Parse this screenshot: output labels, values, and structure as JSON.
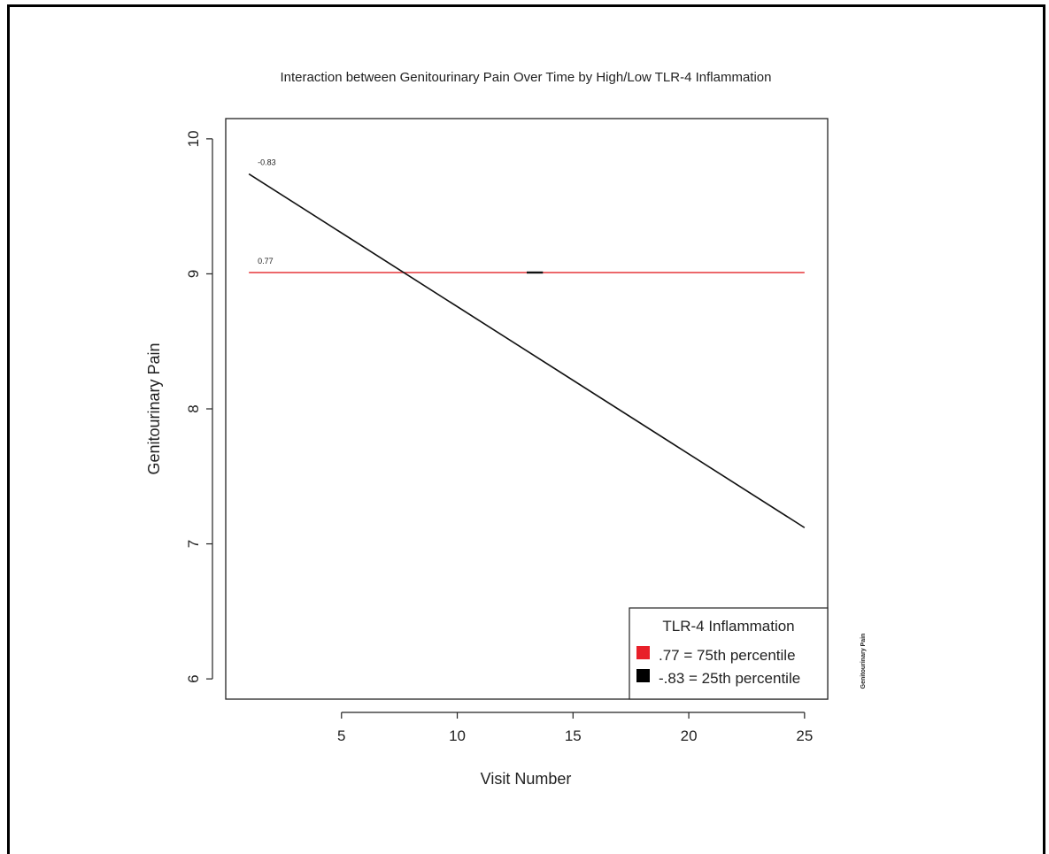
{
  "chart_data": {
    "type": "line",
    "title": "Interaction between Genitourinary Pain Over Time by High/Low TLR-4 Inflammation",
    "xlabel": "Visit Number",
    "ylabel": "Genitourinary Pain",
    "side_label": "Genitourinary Pain",
    "xlim": [
      0,
      26
    ],
    "ylim": [
      5.85,
      10.15
    ],
    "xticks": [
      5,
      10,
      15,
      20,
      25
    ],
    "yticks": [
      6,
      7,
      8,
      9,
      10
    ],
    "grid": false,
    "series": [
      {
        "color": "#e8474a",
        "x": [
          1,
          25
        ],
        "y": [
          9.01,
          9.01
        ],
        "label": "0.77"
      },
      {
        "color": "#111111",
        "x": [
          1,
          25
        ],
        "y": [
          9.74,
          7.12
        ],
        "label": "-0.83"
      }
    ],
    "small_segment": {
      "x": [
        13.0,
        13.7
      ],
      "y": 9.01,
      "color": "#111111"
    },
    "legend": {
      "title": "TLR-4 Inflammation",
      "position": "bottom-right",
      "entries": [
        {
          "label": ".77 = 75th percentile",
          "color": "#e8202a"
        },
        {
          "label": "-.83 = 25th percentile",
          "color": "#000000"
        }
      ]
    }
  }
}
